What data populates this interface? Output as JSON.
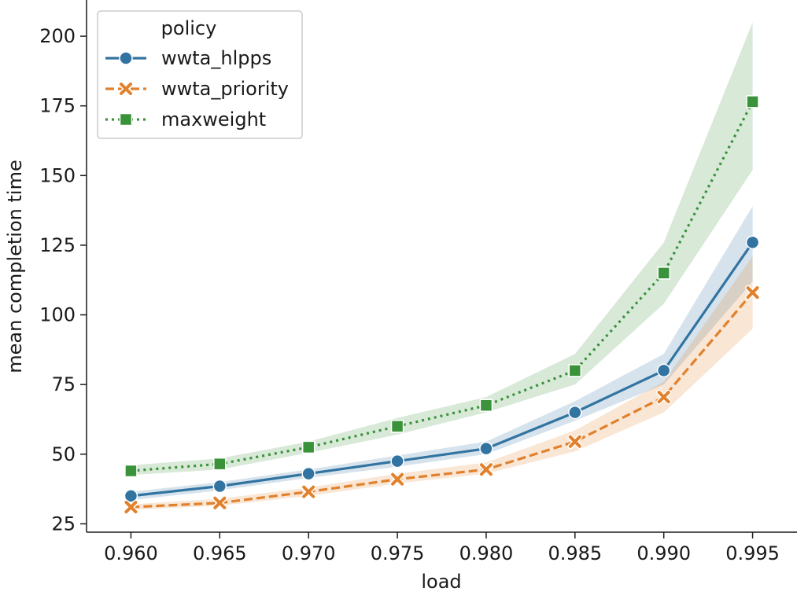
{
  "chart_data": {
    "type": "line",
    "xlabel": "load",
    "ylabel": "mean completion time",
    "xlim": [
      0.9575,
      0.9975
    ],
    "ylim": [
      22,
      213
    ],
    "x": [
      0.96,
      0.965,
      0.97,
      0.975,
      0.98,
      0.985,
      0.99,
      0.995
    ],
    "xticks": [
      0.96,
      0.965,
      0.97,
      0.975,
      0.98,
      0.985,
      0.99,
      0.995
    ],
    "xtick_labels": [
      "0.960",
      "0.965",
      "0.970",
      "0.975",
      "0.980",
      "0.985",
      "0.990",
      "0.995"
    ],
    "yticks": [
      25,
      50,
      75,
      100,
      125,
      150,
      175,
      200
    ],
    "ytick_labels": [
      "25",
      "50",
      "75",
      "100",
      "125",
      "150",
      "175",
      "200"
    ],
    "grid": false,
    "legend": {
      "title": "policy",
      "position": "top-left"
    },
    "series": [
      {
        "name": "wwta_hlpps",
        "color": "#3274a1",
        "linestyle": "solid",
        "marker": "circle",
        "values": [
          35,
          38.5,
          43,
          47.5,
          52,
          65,
          80,
          126
        ],
        "ci_lower": [
          33.5,
          37,
          41.5,
          45.5,
          50,
          62,
          75,
          112
        ],
        "ci_upper": [
          36.5,
          40,
          44.5,
          49.5,
          54.5,
          69,
          86,
          139
        ]
      },
      {
        "name": "wwta_priority",
        "color": "#e1812c",
        "linestyle": "dashed",
        "marker": "x",
        "values": [
          31,
          32.5,
          36.5,
          41,
          44.5,
          54.5,
          70.5,
          108
        ],
        "ci_lower": [
          30,
          31.5,
          35,
          39.5,
          43,
          51,
          65,
          95
        ],
        "ci_upper": [
          32,
          34,
          38,
          43,
          47,
          58.5,
          76,
          121
        ]
      },
      {
        "name": "maxweight",
        "color": "#3a923a",
        "linestyle": "dotted",
        "marker": "square",
        "values": [
          44,
          46.5,
          52.5,
          60,
          67.5,
          80,
          115,
          176.5
        ],
        "ci_lower": [
          42.5,
          44.5,
          50.5,
          57,
          65,
          75,
          104,
          152
        ],
        "ci_upper": [
          46,
          48.5,
          54.5,
          63,
          70.5,
          86,
          126,
          205
        ]
      }
    ]
  }
}
